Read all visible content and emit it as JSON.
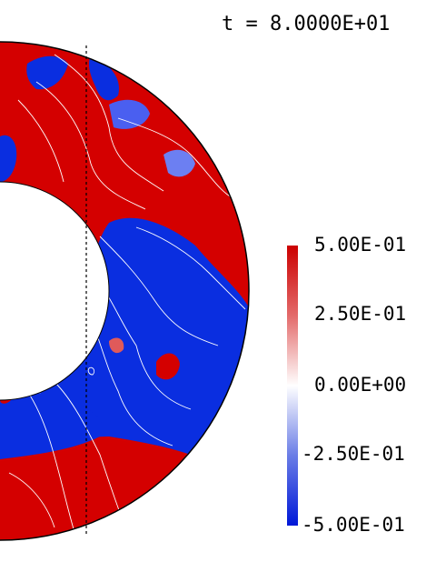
{
  "time_label": "t = 8.0000E+01",
  "colorbar": {
    "ticks": [
      "5.00E-01",
      "2.50E-01",
      "0.00E+00",
      "-2.50E-01",
      "-5.00E-01"
    ],
    "values": [
      0.5,
      0.25,
      0.0,
      -0.25,
      -0.5
    ],
    "colors": {
      "max": "#d40000",
      "mid": "#ffffff",
      "min": "#0022e0"
    }
  },
  "field_colors": {
    "positive": "#d40000",
    "negative": "#0a2ee0",
    "contour": "#ffffff",
    "outline": "#000000"
  }
}
